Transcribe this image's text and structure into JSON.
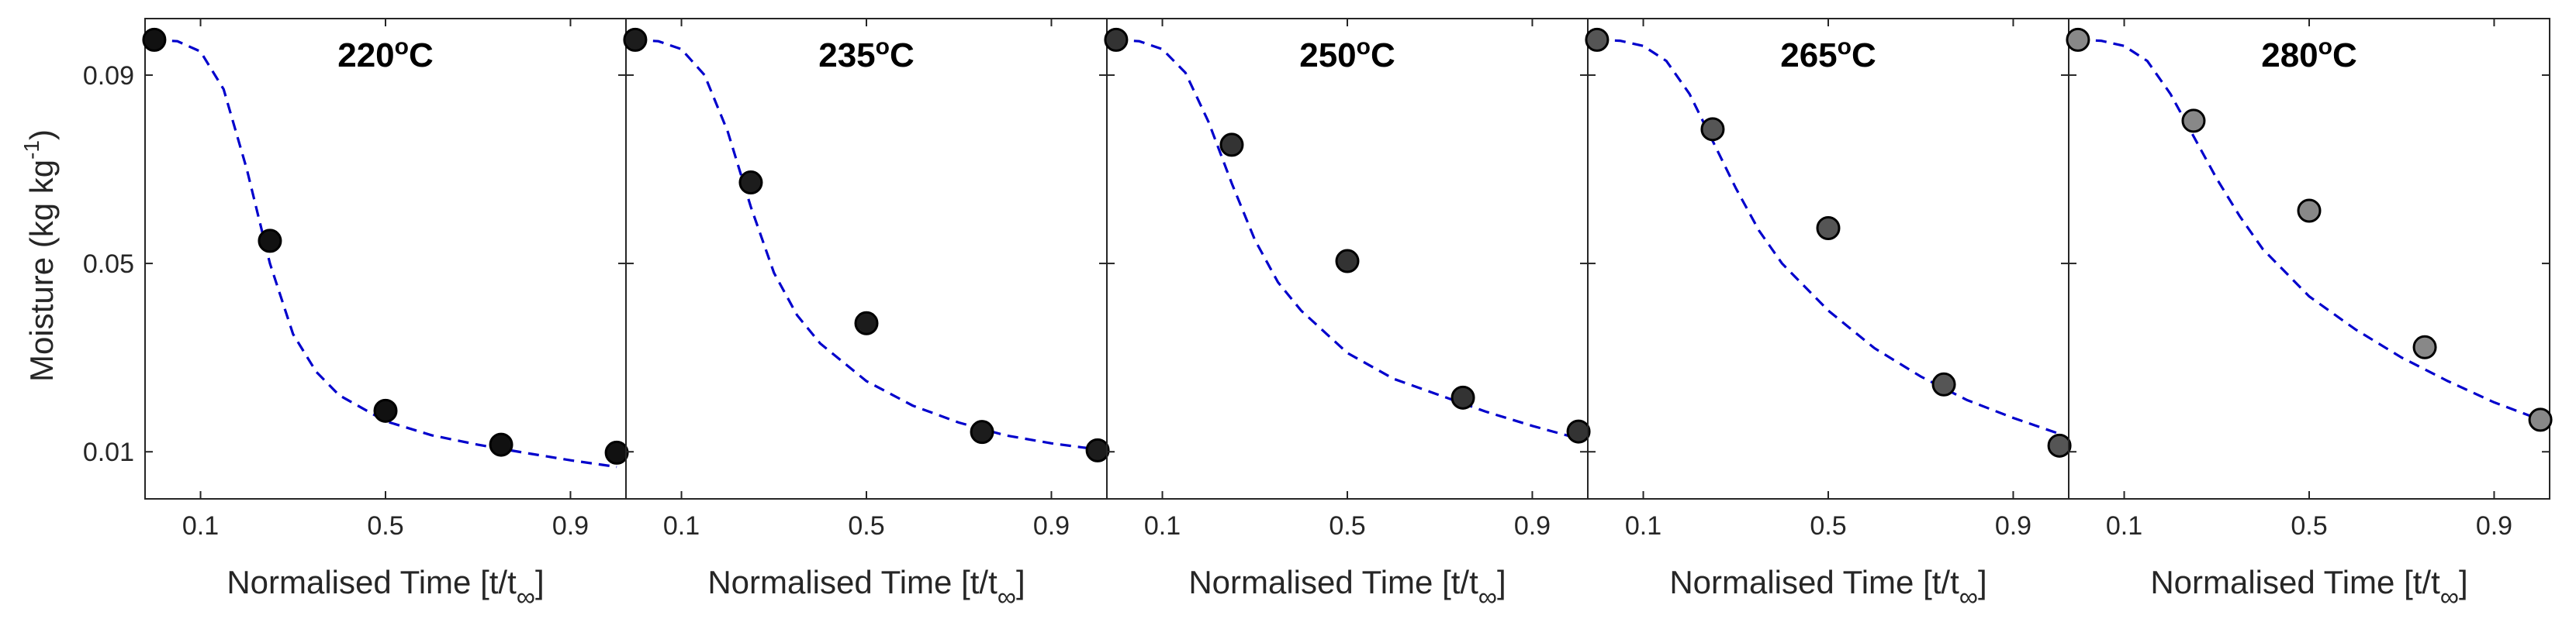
{
  "chart_data": {
    "type": "scatter",
    "ylabel": "Moisture (kg kg",
    "ylabel_superscript": "-1",
    "ylabel_tail": ")",
    "xlabel": "Normalised Time [t/t",
    "xlabel_subscript": "∞",
    "xlabel_tail": "]",
    "xlim": [
      -0.02,
      1.02
    ],
    "ylim": [
      0.0,
      0.102
    ],
    "xticks": [
      0.1,
      0.5,
      0.9
    ],
    "xtick_labels": [
      "0.1",
      "0.5",
      "0.9"
    ],
    "yticks": [
      0.01,
      0.05,
      0.09
    ],
    "ytick_labels": [
      "0.01",
      "0.05",
      "0.09"
    ],
    "series_style": {
      "observed": "markers",
      "model": "dashed line"
    },
    "panels": [
      {
        "title": "220",
        "title_unit": "C",
        "marker_color": "#111111",
        "points": [
          {
            "x": 0.0,
            "y": 0.0975
          },
          {
            "x": 0.25,
            "y": 0.0548
          },
          {
            "x": 0.5,
            "y": 0.0187
          },
          {
            "x": 0.75,
            "y": 0.0115
          },
          {
            "x": 1.0,
            "y": 0.0098
          }
        ],
        "model": [
          {
            "x": 0.0,
            "y": 0.0975
          },
          {
            "x": 0.05,
            "y": 0.0972
          },
          {
            "x": 0.1,
            "y": 0.095
          },
          {
            "x": 0.15,
            "y": 0.087
          },
          {
            "x": 0.2,
            "y": 0.07
          },
          {
            "x": 0.25,
            "y": 0.05
          },
          {
            "x": 0.3,
            "y": 0.035
          },
          {
            "x": 0.35,
            "y": 0.027
          },
          {
            "x": 0.4,
            "y": 0.022
          },
          {
            "x": 0.5,
            "y": 0.0165
          },
          {
            "x": 0.6,
            "y": 0.0135
          },
          {
            "x": 0.7,
            "y": 0.0115
          },
          {
            "x": 0.8,
            "y": 0.0098
          },
          {
            "x": 0.9,
            "y": 0.0082
          },
          {
            "x": 1.0,
            "y": 0.0068
          }
        ]
      },
      {
        "title": "235",
        "title_unit": "C",
        "marker_color": "#1c1c1c",
        "points": [
          {
            "x": 0.0,
            "y": 0.0975
          },
          {
            "x": 0.25,
            "y": 0.0672
          },
          {
            "x": 0.5,
            "y": 0.0373
          },
          {
            "x": 0.75,
            "y": 0.0142
          },
          {
            "x": 1.0,
            "y": 0.0103
          }
        ],
        "model": [
          {
            "x": 0.0,
            "y": 0.0975
          },
          {
            "x": 0.05,
            "y": 0.0972
          },
          {
            "x": 0.1,
            "y": 0.0955
          },
          {
            "x": 0.15,
            "y": 0.09
          },
          {
            "x": 0.2,
            "y": 0.078
          },
          {
            "x": 0.25,
            "y": 0.062
          },
          {
            "x": 0.3,
            "y": 0.048
          },
          {
            "x": 0.35,
            "y": 0.039
          },
          {
            "x": 0.4,
            "y": 0.033
          },
          {
            "x": 0.5,
            "y": 0.025
          },
          {
            "x": 0.6,
            "y": 0.0198
          },
          {
            "x": 0.7,
            "y": 0.0162
          },
          {
            "x": 0.8,
            "y": 0.0135
          },
          {
            "x": 0.9,
            "y": 0.0118
          },
          {
            "x": 1.0,
            "y": 0.0105
          }
        ]
      },
      {
        "title": "250",
        "title_unit": "C",
        "marker_color": "#333333",
        "points": [
          {
            "x": 0.0,
            "y": 0.0975
          },
          {
            "x": 0.25,
            "y": 0.0752
          },
          {
            "x": 0.5,
            "y": 0.0505
          },
          {
            "x": 0.75,
            "y": 0.0215
          },
          {
            "x": 1.0,
            "y": 0.0143
          }
        ],
        "model": [
          {
            "x": 0.0,
            "y": 0.0975
          },
          {
            "x": 0.05,
            "y": 0.0972
          },
          {
            "x": 0.1,
            "y": 0.0955
          },
          {
            "x": 0.15,
            "y": 0.0905
          },
          {
            "x": 0.2,
            "y": 0.08
          },
          {
            "x": 0.25,
            "y": 0.067
          },
          {
            "x": 0.3,
            "y": 0.055
          },
          {
            "x": 0.35,
            "y": 0.046
          },
          {
            "x": 0.4,
            "y": 0.04
          },
          {
            "x": 0.5,
            "y": 0.031
          },
          {
            "x": 0.6,
            "y": 0.0255
          },
          {
            "x": 0.7,
            "y": 0.022
          },
          {
            "x": 0.8,
            "y": 0.0185
          },
          {
            "x": 0.9,
            "y": 0.0155
          },
          {
            "x": 1.0,
            "y": 0.0128
          }
        ]
      },
      {
        "title": "265",
        "title_unit": "C",
        "marker_color": "#555555",
        "points": [
          {
            "x": 0.0,
            "y": 0.0975
          },
          {
            "x": 0.25,
            "y": 0.0785
          },
          {
            "x": 0.5,
            "y": 0.0575
          },
          {
            "x": 0.75,
            "y": 0.0243
          },
          {
            "x": 1.0,
            "y": 0.0113
          }
        ],
        "model": [
          {
            "x": 0.0,
            "y": 0.0975
          },
          {
            "x": 0.05,
            "y": 0.0973
          },
          {
            "x": 0.1,
            "y": 0.0962
          },
          {
            "x": 0.15,
            "y": 0.093
          },
          {
            "x": 0.2,
            "y": 0.086
          },
          {
            "x": 0.25,
            "y": 0.076
          },
          {
            "x": 0.3,
            "y": 0.066
          },
          {
            "x": 0.35,
            "y": 0.057
          },
          {
            "x": 0.4,
            "y": 0.05
          },
          {
            "x": 0.5,
            "y": 0.04
          },
          {
            "x": 0.6,
            "y": 0.032
          },
          {
            "x": 0.7,
            "y": 0.026
          },
          {
            "x": 0.8,
            "y": 0.021
          },
          {
            "x": 0.9,
            "y": 0.0172
          },
          {
            "x": 1.0,
            "y": 0.0138
          }
        ]
      },
      {
        "title": "280",
        "title_unit": "C",
        "marker_color": "#888888",
        "points": [
          {
            "x": 0.0,
            "y": 0.0975
          },
          {
            "x": 0.25,
            "y": 0.0803
          },
          {
            "x": 0.5,
            "y": 0.0612
          },
          {
            "x": 0.75,
            "y": 0.0322
          },
          {
            "x": 1.0,
            "y": 0.0168
          }
        ],
        "model": [
          {
            "x": 0.0,
            "y": 0.0975
          },
          {
            "x": 0.05,
            "y": 0.0973
          },
          {
            "x": 0.1,
            "y": 0.0962
          },
          {
            "x": 0.15,
            "y": 0.093
          },
          {
            "x": 0.2,
            "y": 0.086
          },
          {
            "x": 0.25,
            "y": 0.077
          },
          {
            "x": 0.3,
            "y": 0.068
          },
          {
            "x": 0.35,
            "y": 0.06
          },
          {
            "x": 0.4,
            "y": 0.053
          },
          {
            "x": 0.5,
            "y": 0.043
          },
          {
            "x": 0.6,
            "y": 0.036
          },
          {
            "x": 0.7,
            "y": 0.03
          },
          {
            "x": 0.8,
            "y": 0.025
          },
          {
            "x": 0.9,
            "y": 0.0205
          },
          {
            "x": 1.0,
            "y": 0.0168
          }
        ]
      }
    ]
  }
}
